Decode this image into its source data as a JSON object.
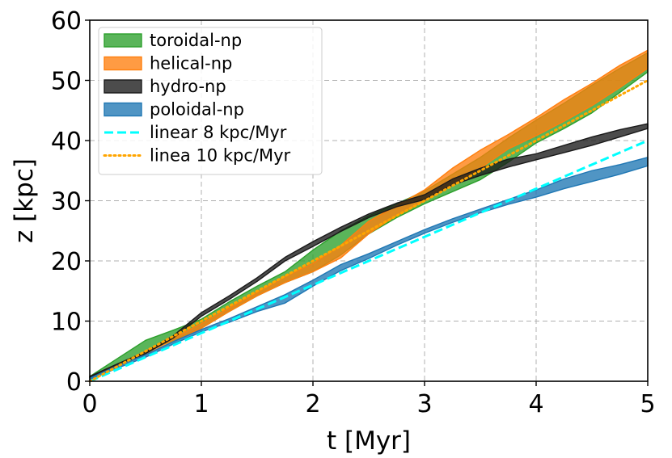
{
  "chart_data": {
    "type": "area",
    "title": "",
    "xlabel": "t [Myr]",
    "ylabel": "z [kpc]",
    "xlim": [
      0,
      5
    ],
    "ylim": [
      0,
      60
    ],
    "xticks": [
      0,
      1,
      2,
      3,
      4,
      5
    ],
    "yticks": [
      0,
      10,
      20,
      30,
      40,
      50,
      60
    ],
    "xtick_labels": [
      "0",
      "1",
      "2",
      "3",
      "4",
      "5"
    ],
    "ytick_labels": [
      "0",
      "10",
      "20",
      "30",
      "40",
      "50",
      "60"
    ],
    "grid": true,
    "legend_position": "top-left",
    "bands": [
      {
        "name": "toroidal-np",
        "color": "#2ca02c",
        "x": [
          0,
          0.25,
          0.5,
          0.75,
          1,
          1.25,
          1.5,
          1.75,
          2,
          2.25,
          2.5,
          2.75,
          3,
          3.25,
          3.5,
          3.75,
          4,
          4.25,
          4.5,
          4.75,
          5
        ],
        "lower": [
          0.6,
          2.6,
          5,
          6.8,
          8.8,
          11.6,
          14.2,
          16.4,
          18.2,
          21,
          24.5,
          27.2,
          29.5,
          31.5,
          33.5,
          36.4,
          39.6,
          42,
          44.6,
          48,
          51.4
        ],
        "upper": [
          0.8,
          3.8,
          6.8,
          8.5,
          10.3,
          13.2,
          15.8,
          18.2,
          21.8,
          25,
          27.5,
          29.5,
          31.6,
          34.4,
          37.2,
          40.4,
          43.4,
          46.2,
          49.2,
          52,
          54.6
        ]
      },
      {
        "name": "helical-np",
        "color": "#ff7f0e",
        "x": [
          0,
          0.25,
          0.5,
          0.75,
          1,
          1.25,
          1.5,
          1.75,
          2,
          2.25,
          2.5,
          2.75,
          3,
          3.25,
          3.5,
          3.75,
          4,
          4.25,
          4.5,
          4.75,
          5
        ],
        "lower": [
          0.6,
          2.4,
          4.4,
          6.6,
          8.8,
          11.6,
          14.2,
          16.4,
          18.2,
          20.5,
          24.5,
          27.6,
          30,
          32.6,
          35.4,
          38.6,
          40.8,
          43.2,
          45.8,
          48.8,
          52
        ],
        "upper": [
          0.8,
          2.8,
          5,
          7.2,
          9.6,
          12.2,
          14.8,
          17.4,
          19.6,
          22.6,
          26.6,
          29.2,
          31.8,
          35.4,
          38.4,
          41,
          43.8,
          46.8,
          49.5,
          52.5,
          55
        ]
      },
      {
        "name": "hydro-np",
        "color": "#1a1a1a",
        "x": [
          0,
          0.25,
          0.5,
          0.75,
          1,
          1.25,
          1.5,
          1.75,
          2,
          2.25,
          2.5,
          2.75,
          3,
          3.25,
          3.5,
          3.75,
          4,
          4.25,
          4.5,
          4.75,
          5
        ],
        "lower": [
          0.6,
          2.6,
          4.6,
          7.2,
          10.8,
          13.6,
          16.6,
          20,
          22.4,
          24.9,
          27.2,
          29,
          30.2,
          32.6,
          34.2,
          35.6,
          36.8,
          38,
          39.2,
          40.6,
          42
        ],
        "upper": [
          0.8,
          2.9,
          4.9,
          7.6,
          11.4,
          14.2,
          17.2,
          20.6,
          23.2,
          25.6,
          27.8,
          29.6,
          31,
          33.6,
          35.4,
          36.9,
          37.8,
          39.2,
          40.6,
          41.8,
          42.8
        ]
      },
      {
        "name": "poloidal-np",
        "color": "#1f77b4",
        "x": [
          0,
          0.25,
          0.5,
          0.75,
          1,
          1.25,
          1.5,
          1.75,
          2,
          2.25,
          2.5,
          2.75,
          3,
          3.25,
          3.5,
          3.75,
          4,
          4.25,
          4.5,
          4.75,
          5
        ],
        "lower": [
          0.3,
          2.2,
          4,
          6.2,
          8.2,
          9.8,
          11.6,
          13,
          15.8,
          18.4,
          20.4,
          22.6,
          24.6,
          26.4,
          28,
          29.4,
          30.6,
          32,
          33.2,
          34.4,
          35.8
        ],
        "upper": [
          0.5,
          2.6,
          4.4,
          6.6,
          8.6,
          10.4,
          12.4,
          14.4,
          16.8,
          19.4,
          21.2,
          23.2,
          25.2,
          27,
          28.6,
          30.2,
          31.8,
          33.6,
          35,
          36,
          37.2
        ]
      }
    ],
    "lines": [
      {
        "name": "linear 8 kpc/Myr",
        "style": "dashed",
        "color": "#00ffff",
        "slope": 8,
        "x": [
          0,
          5
        ],
        "y": [
          0,
          40
        ]
      },
      {
        "name": "linea 10 kpc/Myr",
        "style": "dotted",
        "color": "#ffa500",
        "slope": 10,
        "x": [
          0,
          5
        ],
        "y": [
          0,
          50
        ]
      }
    ],
    "legend": [
      {
        "label": "toroidal-np",
        "kind": "band",
        "color": "#2ca02c"
      },
      {
        "label": "helical-np",
        "kind": "band",
        "color": "#ff7f0e"
      },
      {
        "label": "hydro-np",
        "kind": "band",
        "color": "#1a1a1a"
      },
      {
        "label": "poloidal-np",
        "kind": "band",
        "color": "#1f77b4"
      },
      {
        "label": "linear 8 kpc/Myr",
        "kind": "dashed",
        "color": "#00ffff"
      },
      {
        "label": "linea 10 kpc/Myr",
        "kind": "dotted",
        "color": "#ffa500"
      }
    ]
  }
}
